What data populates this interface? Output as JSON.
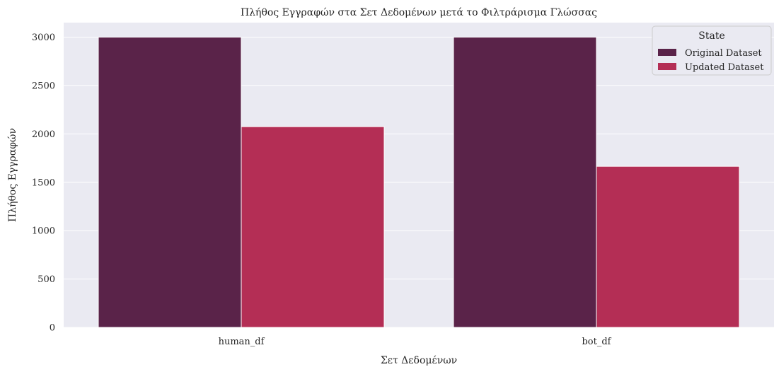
{
  "chart_data": {
    "type": "bar",
    "title": "Πλήθος Εγγραφών στα Σετ Δεδομένων μετά το Φιλτράρισμα Γλώσσας",
    "xlabel": "Σετ Δεδομένων",
    "ylabel": "Πλήθος Εγγραφών",
    "categories": [
      "human_df",
      "bot_df"
    ],
    "series": [
      {
        "name": "Original Dataset",
        "values": [
          3000,
          3000
        ],
        "color": "#5a2349"
      },
      {
        "name": "Updated Dataset",
        "values": [
          2075,
          1665
        ],
        "color": "#b42e55"
      }
    ],
    "ylim": [
      0,
      3150
    ],
    "yticks": [
      0,
      500,
      1000,
      1500,
      2000,
      2500,
      3000
    ],
    "grid": true,
    "legend": {
      "title": "State",
      "position": "top-right"
    },
    "colors": {
      "plot_background": "#eaeaf2",
      "grid": "#ffffff"
    }
  }
}
